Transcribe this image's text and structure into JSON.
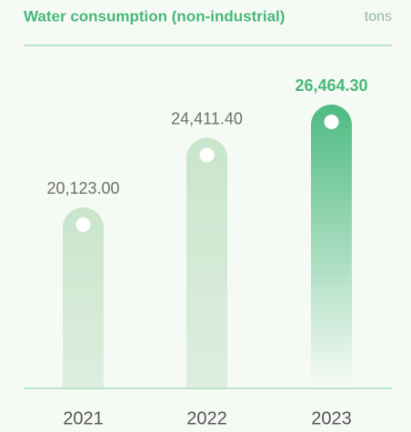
{
  "chart_data": {
    "type": "bar",
    "title": "Water consumption (non-industrial)",
    "subtitle": "tons",
    "categories": [
      "2021",
      "2022",
      "2023"
    ],
    "values": [
      20123,
      24411.4,
      26464.3
    ],
    "value_labels": [
      "20,123.00",
      "24,411.40",
      "26,464.30"
    ],
    "colors": [
      "#c9e5cc",
      "#c9e5cc",
      "#4fbb82"
    ]
  }
}
